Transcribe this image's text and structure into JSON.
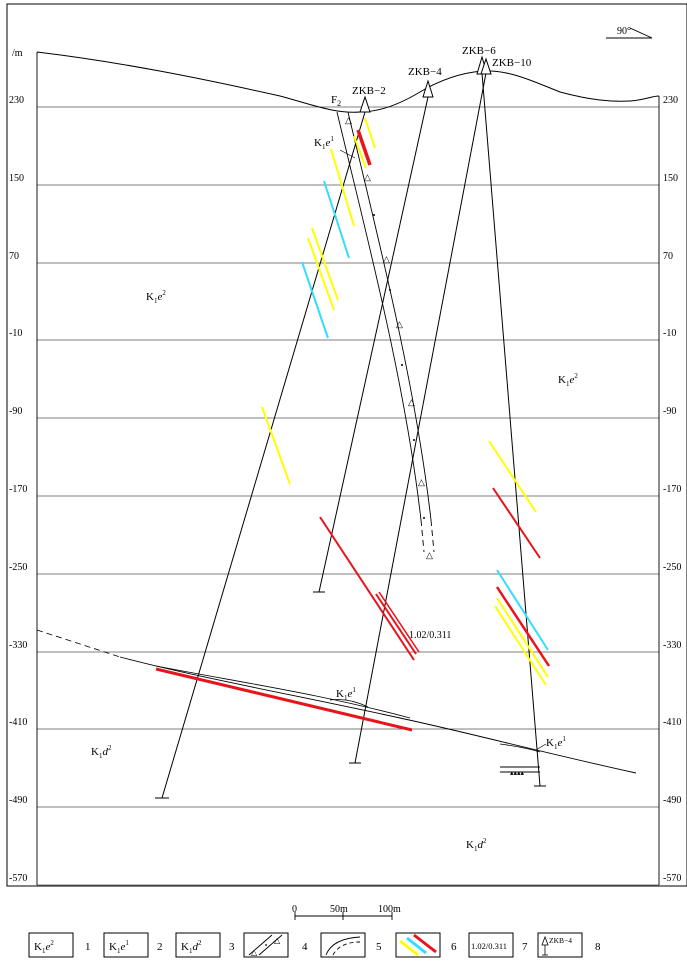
{
  "azimuth": "90°",
  "elevation_unit": "/m",
  "elevation_ticks": [
    "230",
    "150",
    "70",
    "-10",
    "-90",
    "-170",
    "-250",
    "-330",
    "-410",
    "-490",
    "-570"
  ],
  "fault": {
    "label": "F",
    "sub": "2"
  },
  "boreholes": {
    "zkb2": "ZKB−2",
    "zkb4": "ZKB−4",
    "zkb6": "ZKB−6",
    "zkb10": "ZKB−10"
  },
  "formations": {
    "k1e2": {
      "base": "K",
      "sub": "1",
      "letter": "e",
      "sup": "2"
    },
    "k1e1": {
      "base": "K",
      "sub": "1",
      "letter": "e",
      "sup": "1"
    },
    "k1d2": {
      "base": "K",
      "sub": "1",
      "letter": "d",
      "sup": "2"
    }
  },
  "ore_annotation": "1.02/0.311",
  "colors": {
    "yellow": "#ffff00",
    "cyan": "#33ddff",
    "red": "#e8141c",
    "line": "#000000",
    "grid": "#555555"
  },
  "scale_bar": {
    "ticks": [
      "0",
      "50m",
      "100m"
    ]
  },
  "legend": {
    "items": [
      {
        "num": "1",
        "kind": "formation",
        "ref": "k1e2"
      },
      {
        "num": "2",
        "kind": "formation",
        "ref": "k1e1"
      },
      {
        "num": "3",
        "kind": "formation",
        "ref": "k1d2"
      },
      {
        "num": "4",
        "kind": "fault-zone-icon"
      },
      {
        "num": "5",
        "kind": "contact-boundary-icon"
      },
      {
        "num": "6",
        "kind": "orebody-colors-icon"
      },
      {
        "num": "7",
        "kind": "grade-box",
        "text": "1.02/0.311"
      },
      {
        "num": "8",
        "kind": "borehole-symbol",
        "text": "ZKB−4"
      }
    ]
  }
}
